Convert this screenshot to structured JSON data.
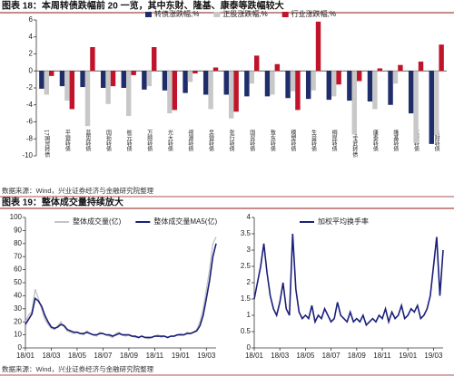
{
  "chart_data": [
    {
      "type": "bar",
      "title": "图表 18：本周转债跌幅前 20 一览，其中东财、隆基、康泰等跌幅较大",
      "source": "数据来源：Wind，兴业证券经济与金融研究院整理",
      "categories": [
        "17国贸转债",
        "平银转债",
        "蓝思转债",
        "国祯转债",
        "桩元转债",
        "万顺转债",
        "光大转债",
        "视源转债",
        "吴银转债",
        "张行转债",
        "国贸转债",
        "敖东转债",
        "模塑转债",
        "生益转债",
        "桐昆转债",
        "17宝武转债",
        "康泰转债",
        "隆基转债",
        "蓝晓转债",
        "东财转债"
      ],
      "series": [
        {
          "name": "转债涨跌幅,%",
          "color": "#1f2d6b",
          "values": [
            -2.1,
            -1.8,
            -1.9,
            -2.0,
            -2.0,
            -2.2,
            -2.3,
            -2.6,
            -2.8,
            -2.8,
            -3.0,
            -3.0,
            -3.2,
            -3.3,
            -3.4,
            -3.5,
            -3.6,
            -4.0,
            -5.0,
            -8.6
          ]
        },
        {
          "name": "正股涨跌幅,%",
          "color": "#c8c8c8",
          "values": [
            -2.8,
            -3.5,
            -6.5,
            -3.9,
            -5.3,
            -1.8,
            -5.0,
            -1.3,
            -4.5,
            -5.6,
            -1.5,
            -2.8,
            -2.4,
            -2.3,
            -3.0,
            -7.5,
            -4.5,
            -1.5,
            -8.5,
            -7.6
          ]
        },
        {
          "name": "行业涨跌幅,%",
          "color": "#c0142a",
          "values": [
            -0.6,
            -4.5,
            2.8,
            -1.8,
            -0.5,
            2.8,
            -4.6,
            -0.3,
            0.4,
            -4.8,
            1.8,
            0.8,
            -4.6,
            5.8,
            -1.6,
            -1.2,
            0.3,
            0.7,
            1.1,
            3.1
          ]
        }
      ],
      "ylim": [
        -10,
        6
      ],
      "yticks": [
        -10,
        -8,
        -6,
        -4,
        -2,
        0,
        2,
        4,
        6
      ],
      "legend": "top-right"
    },
    {
      "type": "line",
      "title": "图表 19：整体成交量持续放大",
      "source": "数据来源：Wind，兴业证券经济与金融研究院整理",
      "categories": [
        "18/01",
        null,
        null,
        null,
        null,
        null,
        null,
        null,
        "18/03",
        null,
        null,
        null,
        null,
        null,
        null,
        null,
        "18/05",
        null,
        null,
        null,
        null,
        null,
        null,
        null,
        "18/07",
        null,
        null,
        null,
        null,
        null,
        null,
        null,
        "18/09",
        null,
        null,
        null,
        null,
        null,
        null,
        null,
        "18/11",
        null,
        null,
        null,
        null,
        null,
        null,
        null,
        "19/01",
        null,
        null,
        null,
        null,
        null,
        null,
        null,
        "19/03",
        null,
        null,
        null
      ],
      "series": [
        {
          "name": "整体成交量(亿)",
          "color": "#c4c4c4",
          "values": [
            20,
            25,
            28,
            45,
            38,
            30,
            22,
            18,
            15,
            14,
            17,
            20,
            16,
            13,
            12,
            11,
            12,
            11,
            10,
            13,
            11,
            10,
            9,
            12,
            11,
            10,
            9,
            8,
            11,
            12,
            10,
            9,
            10,
            9,
            8,
            8,
            9,
            8,
            7,
            8,
            9,
            10,
            8,
            9,
            8,
            9,
            9,
            10,
            11,
            10,
            12,
            11,
            12,
            14,
            20,
            30,
            45,
            60,
            80,
            85
          ]
        },
        {
          "name": "整体成交量MA5(亿)",
          "color": "#1a1f7a",
          "values": [
            18,
            22,
            26,
            38,
            36,
            32,
            25,
            20,
            16,
            15,
            16,
            18,
            17,
            14,
            13,
            12,
            12,
            11,
            11,
            12,
            11,
            10,
            10,
            11,
            11,
            10,
            10,
            9,
            10,
            11,
            10,
            10,
            10,
            9,
            9,
            8,
            9,
            8,
            8,
            8,
            9,
            9,
            9,
            9,
            8,
            9,
            9,
            10,
            10,
            10,
            11,
            11,
            12,
            13,
            17,
            25,
            38,
            52,
            70,
            80
          ]
        }
      ],
      "ylim": [
        0,
        100
      ],
      "yticks": [
        0,
        10,
        20,
        30,
        40,
        50,
        60,
        70,
        80,
        90,
        100
      ],
      "legend": "top"
    },
    {
      "type": "line",
      "categories": [
        "18/01",
        null,
        null,
        null,
        null,
        null,
        null,
        null,
        "18/03",
        null,
        null,
        null,
        null,
        null,
        null,
        null,
        "18/05",
        null,
        null,
        null,
        null,
        null,
        null,
        null,
        "18/07",
        null,
        null,
        null,
        null,
        null,
        null,
        null,
        "18/09",
        null,
        null,
        null,
        null,
        null,
        null,
        null,
        "18/11",
        null,
        null,
        null,
        null,
        null,
        null,
        null,
        "19/01",
        null,
        null,
        null,
        null,
        null,
        null,
        null,
        "19/03",
        null,
        null,
        null
      ],
      "series": [
        {
          "name": "加权平均换手率",
          "color": "#1a1f7a",
          "values": [
            1.5,
            2.0,
            2.5,
            3.2,
            2.3,
            1.6,
            1.2,
            1.0,
            1.4,
            2.0,
            1.2,
            1.0,
            3.5,
            1.8,
            1.1,
            0.9,
            1.0,
            0.9,
            1.3,
            0.8,
            1.0,
            0.9,
            1.2,
            1.0,
            0.8,
            0.9,
            1.4,
            1.0,
            0.9,
            0.8,
            1.1,
            0.8,
            0.9,
            0.8,
            1.0,
            0.7,
            0.8,
            0.9,
            0.8,
            1.0,
            0.9,
            1.2,
            0.8,
            1.1,
            0.9,
            1.0,
            1.3,
            0.9,
            1.0,
            1.2,
            1.1,
            1.3,
            0.9,
            1.0,
            1.2,
            1.6,
            2.5,
            3.4,
            1.6,
            3.0
          ]
        }
      ],
      "ylim": [
        0,
        4
      ],
      "yticks": [
        0,
        0.5,
        1,
        1.5,
        2,
        2.5,
        3,
        3.5,
        4
      ],
      "legend": "top"
    }
  ]
}
